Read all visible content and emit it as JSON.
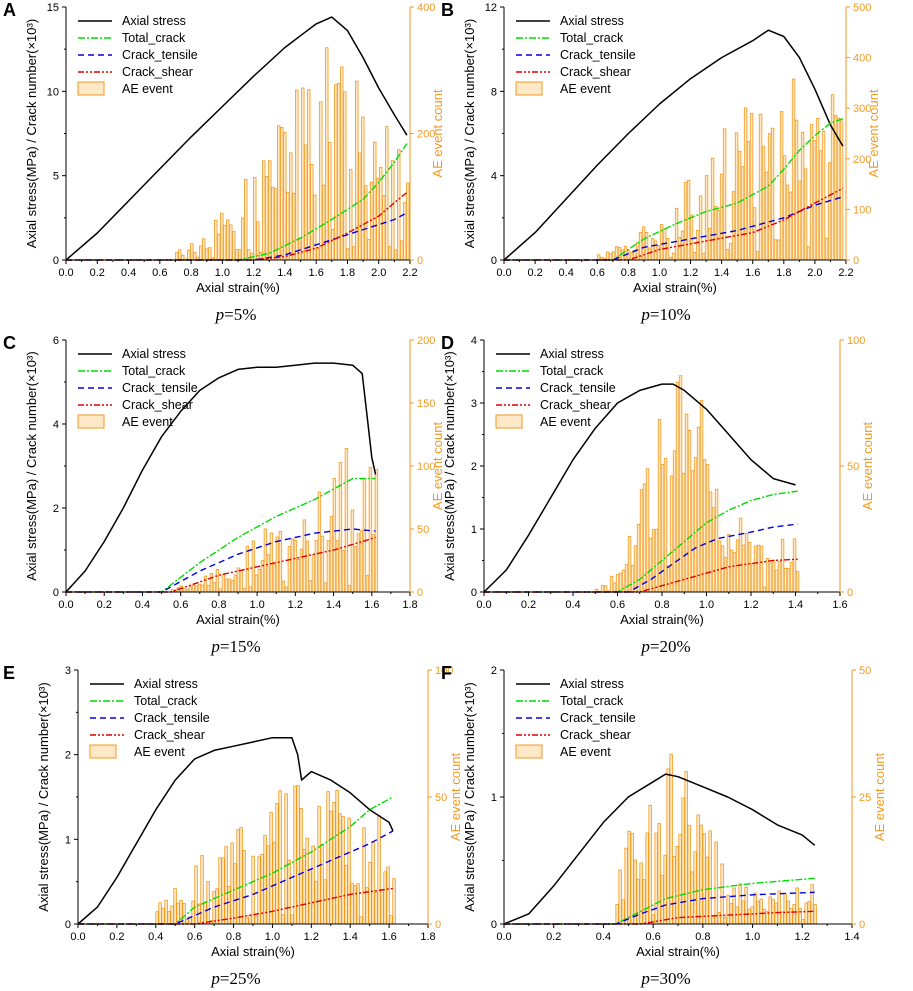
{
  "colors": {
    "stress": "#000000",
    "total": "#00dd00",
    "tensile": "#0000dd",
    "shear": "#dd0000",
    "ae": "#f39a1e",
    "ae_fill": "#fde8c8"
  },
  "common": {
    "xlabel": "Axial strain(%)",
    "ylabel_left": "Axial stress(MPa) / Crack number(×10³)",
    "ylabel_right": "AE event count",
    "legend": [
      "Axial stress",
      "Total_crack",
      "Crack_tensile",
      "Crack_shear",
      "AE event"
    ]
  },
  "chart_data": [
    {
      "panel": "A",
      "type": "line+bar",
      "caption_var": "p",
      "caption_value": "=5%",
      "xlim": [
        0,
        2.2
      ],
      "xticks": [
        0.0,
        0.2,
        0.4,
        0.6,
        0.8,
        1.0,
        1.2,
        1.4,
        1.6,
        1.8,
        2.0,
        2.2
      ],
      "ylim_left": [
        0,
        15
      ],
      "yticks_left": [
        0,
        5,
        10,
        15
      ],
      "ylim_right": [
        0,
        400
      ],
      "yticks_right": [
        0,
        200,
        400
      ],
      "series": [
        {
          "name": "Axial stress",
          "x": [
            0,
            0.2,
            0.4,
            0.6,
            0.8,
            1.0,
            1.2,
            1.4,
            1.5,
            1.6,
            1.7,
            1.8,
            1.9,
            2.0,
            2.1,
            2.18
          ],
          "y": [
            0,
            1.6,
            3.5,
            5.4,
            7.3,
            9.1,
            10.9,
            12.6,
            13.3,
            14.0,
            14.4,
            13.6,
            12.0,
            10.2,
            8.6,
            7.4
          ]
        },
        {
          "name": "Total_crack",
          "x": [
            0,
            1.1,
            1.3,
            1.5,
            1.7,
            1.9,
            2.0,
            2.1,
            2.18
          ],
          "y": [
            0,
            0,
            0.4,
            1.3,
            2.4,
            3.6,
            4.6,
            5.8,
            6.9
          ]
        },
        {
          "name": "Crack_tensile",
          "x": [
            0,
            1.2,
            1.4,
            1.6,
            1.8,
            2.0,
            2.1,
            2.18
          ],
          "y": [
            0,
            0,
            0.3,
            0.9,
            1.5,
            2.1,
            2.4,
            2.8
          ]
        },
        {
          "name": "Crack_shear",
          "x": [
            0,
            1.2,
            1.4,
            1.6,
            1.8,
            2.0,
            2.1,
            2.18
          ],
          "y": [
            0,
            0,
            0.2,
            0.7,
            1.6,
            2.6,
            3.4,
            4.0
          ]
        }
      ],
      "ae": {
        "start": 0.7,
        "end": 2.18,
        "peak_x": 1.72,
        "max": 270,
        "width": 0.4
      }
    },
    {
      "panel": "B",
      "type": "line+bar",
      "caption_var": "p",
      "caption_value": "=10%",
      "xlim": [
        0,
        2.2
      ],
      "xticks": [
        0.0,
        0.2,
        0.4,
        0.6,
        0.8,
        1.0,
        1.2,
        1.4,
        1.6,
        1.8,
        2.0,
        2.2
      ],
      "ylim_left": [
        0,
        12
      ],
      "yticks_left": [
        0,
        4,
        8,
        12
      ],
      "ylim_right": [
        0,
        500
      ],
      "yticks_right": [
        0,
        100,
        200,
        300,
        400,
        500
      ],
      "series": [
        {
          "name": "Axial stress",
          "x": [
            0,
            0.2,
            0.4,
            0.6,
            0.8,
            1.0,
            1.2,
            1.4,
            1.6,
            1.7,
            1.8,
            1.9,
            2.0,
            2.1,
            2.18
          ],
          "y": [
            0,
            1.3,
            2.9,
            4.5,
            6.0,
            7.4,
            8.6,
            9.6,
            10.4,
            10.9,
            10.6,
            9.6,
            8.1,
            6.4,
            5.4
          ]
        },
        {
          "name": "Total_crack",
          "x": [
            0,
            0.7,
            0.9,
            1.1,
            1.3,
            1.5,
            1.6,
            1.7,
            1.8,
            1.9,
            2.0,
            2.1,
            2.18
          ],
          "y": [
            0,
            0,
            1.0,
            1.7,
            2.3,
            2.7,
            3.1,
            3.5,
            4.3,
            5.2,
            5.9,
            6.5,
            6.7
          ]
        },
        {
          "name": "Crack_tensile",
          "x": [
            0,
            0.7,
            0.9,
            1.2,
            1.5,
            1.8,
            2.0,
            2.18
          ],
          "y": [
            0,
            0,
            0.6,
            1.0,
            1.4,
            2.0,
            2.6,
            3.0
          ]
        },
        {
          "name": "Crack_shear",
          "x": [
            0,
            0.8,
            1.0,
            1.3,
            1.6,
            1.8,
            2.0,
            2.18
          ],
          "y": [
            0,
            0,
            0.5,
            0.9,
            1.3,
            1.9,
            2.7,
            3.4
          ]
        }
      ],
      "ae": {
        "start": 0.6,
        "end": 2.18,
        "peak_x": 1.85,
        "max": 300,
        "width": 0.45
      }
    },
    {
      "panel": "C",
      "type": "line+bar",
      "caption_var": "p",
      "caption_value": "=15%",
      "xlim": [
        0,
        1.8
      ],
      "xticks": [
        0.0,
        0.2,
        0.4,
        0.6,
        0.8,
        1.0,
        1.2,
        1.4,
        1.6,
        1.8
      ],
      "ylim_left": [
        0,
        6
      ],
      "yticks_left": [
        0,
        2,
        4,
        6
      ],
      "ylim_right": [
        0,
        200
      ],
      "yticks_right": [
        0,
        50,
        100,
        150,
        200
      ],
      "series": [
        {
          "name": "Axial stress",
          "x": [
            0,
            0.1,
            0.2,
            0.3,
            0.4,
            0.5,
            0.6,
            0.7,
            0.8,
            0.9,
            1.0,
            1.1,
            1.2,
            1.3,
            1.4,
            1.5,
            1.55,
            1.58,
            1.6,
            1.62
          ],
          "y": [
            0,
            0.5,
            1.2,
            2.0,
            2.9,
            3.7,
            4.3,
            4.8,
            5.1,
            5.3,
            5.35,
            5.35,
            5.4,
            5.45,
            5.45,
            5.4,
            5.2,
            4.0,
            3.2,
            2.8
          ]
        },
        {
          "name": "Total_crack",
          "x": [
            0,
            0.5,
            0.7,
            0.9,
            1.1,
            1.3,
            1.5,
            1.6,
            1.62
          ],
          "y": [
            0,
            0,
            0.7,
            1.3,
            1.8,
            2.2,
            2.7,
            2.7,
            2.7
          ]
        },
        {
          "name": "Crack_tensile",
          "x": [
            0,
            0.5,
            0.7,
            0.9,
            1.1,
            1.3,
            1.5,
            1.62
          ],
          "y": [
            0,
            0,
            0.5,
            0.9,
            1.2,
            1.4,
            1.5,
            1.45
          ]
        },
        {
          "name": "Crack_shear",
          "x": [
            0,
            0.55,
            0.8,
            1.0,
            1.2,
            1.4,
            1.55,
            1.62
          ],
          "y": [
            0,
            0,
            0.4,
            0.6,
            0.8,
            1.0,
            1.2,
            1.3
          ]
        }
      ],
      "ae": {
        "start": 0.55,
        "end": 1.62,
        "peak_x": 1.55,
        "max": 90,
        "width": 0.5
      }
    },
    {
      "panel": "D",
      "type": "line+bar",
      "caption_var": "p",
      "caption_value": "=20%",
      "xlim": [
        0,
        1.6
      ],
      "xticks": [
        0.0,
        0.2,
        0.4,
        0.6,
        0.8,
        1.0,
        1.2,
        1.4,
        1.6
      ],
      "ylim_left": [
        0,
        4
      ],
      "yticks_left": [
        0,
        1,
        2,
        3,
        4
      ],
      "ylim_right": [
        0,
        100
      ],
      "yticks_right": [
        0,
        50,
        100
      ],
      "series": [
        {
          "name": "Axial stress",
          "x": [
            0,
            0.1,
            0.2,
            0.3,
            0.4,
            0.5,
            0.6,
            0.7,
            0.8,
            0.85,
            0.9,
            1.0,
            1.1,
            1.2,
            1.3,
            1.4
          ],
          "y": [
            0,
            0.35,
            0.9,
            1.5,
            2.1,
            2.6,
            3.0,
            3.2,
            3.3,
            3.3,
            3.2,
            2.9,
            2.5,
            2.1,
            1.8,
            1.7
          ]
        },
        {
          "name": "Total_crack",
          "x": [
            0,
            0.6,
            0.7,
            0.8,
            0.9,
            1.0,
            1.1,
            1.2,
            1.3,
            1.41
          ],
          "y": [
            0,
            0,
            0.2,
            0.5,
            0.8,
            1.1,
            1.3,
            1.45,
            1.55,
            1.6
          ]
        },
        {
          "name": "Crack_tensile",
          "x": [
            0,
            0.65,
            0.75,
            0.85,
            0.95,
            1.05,
            1.2,
            1.3,
            1.41
          ],
          "y": [
            0,
            0,
            0.2,
            0.45,
            0.7,
            0.85,
            0.95,
            1.03,
            1.08
          ]
        },
        {
          "name": "Crack_shear",
          "x": [
            0,
            0.7,
            0.8,
            0.9,
            1.0,
            1.1,
            1.2,
            1.3,
            1.41
          ],
          "y": [
            0,
            0,
            0.1,
            0.2,
            0.3,
            0.4,
            0.45,
            0.5,
            0.52
          ]
        }
      ],
      "ae": {
        "start": 0.5,
        "end": 1.41,
        "peak_x": 0.88,
        "max": 75,
        "width": 0.22
      }
    },
    {
      "panel": "E",
      "type": "line+bar",
      "caption_var": "p",
      "caption_value": "=25%",
      "xlim": [
        0,
        1.8
      ],
      "xticks": [
        0.0,
        0.2,
        0.4,
        0.6,
        0.8,
        1.0,
        1.2,
        1.4,
        1.6,
        1.8
      ],
      "ylim_left": [
        0,
        3
      ],
      "yticks_left": [
        0,
        1,
        2,
        3
      ],
      "ylim_right": [
        0,
        100
      ],
      "yticks_right": [
        0,
        50,
        100
      ],
      "series": [
        {
          "name": "Axial stress",
          "x": [
            0,
            0.1,
            0.2,
            0.3,
            0.4,
            0.5,
            0.6,
            0.7,
            0.8,
            0.9,
            1.0,
            1.1,
            1.13,
            1.15,
            1.2,
            1.3,
            1.4,
            1.5,
            1.6,
            1.62
          ],
          "y": [
            0,
            0.2,
            0.55,
            0.95,
            1.35,
            1.7,
            1.95,
            2.05,
            2.1,
            2.15,
            2.2,
            2.2,
            2.0,
            1.7,
            1.8,
            1.7,
            1.55,
            1.35,
            1.2,
            1.1
          ]
        },
        {
          "name": "Total_crack",
          "x": [
            0,
            0.5,
            0.6,
            0.8,
            1.0,
            1.2,
            1.4,
            1.5,
            1.62
          ],
          "y": [
            0,
            0,
            0.2,
            0.4,
            0.6,
            0.85,
            1.15,
            1.35,
            1.5
          ]
        },
        {
          "name": "Crack_tensile",
          "x": [
            0,
            0.5,
            0.7,
            0.9,
            1.1,
            1.3,
            1.5,
            1.62
          ],
          "y": [
            0,
            0,
            0.2,
            0.35,
            0.55,
            0.75,
            0.95,
            1.1
          ]
        },
        {
          "name": "Crack_shear",
          "x": [
            0,
            0.6,
            0.8,
            1.0,
            1.2,
            1.4,
            1.62
          ],
          "y": [
            0,
            0,
            0.07,
            0.15,
            0.25,
            0.35,
            0.42
          ]
        }
      ],
      "ae": {
        "start": 0.4,
        "end": 1.62,
        "peak_x": 1.13,
        "max": 45,
        "width": 0.5
      }
    },
    {
      "panel": "F",
      "type": "line+bar",
      "caption_var": "p",
      "caption_value": "=30%",
      "xlim": [
        0,
        1.4
      ],
      "xticks": [
        0.0,
        0.2,
        0.4,
        0.6,
        0.8,
        1.0,
        1.2,
        1.4
      ],
      "ylim_left": [
        0,
        2
      ],
      "yticks_left": [
        0,
        1,
        2
      ],
      "ylim_right": [
        0,
        50
      ],
      "yticks_right": [
        0,
        25,
        50
      ],
      "series": [
        {
          "name": "Axial stress",
          "x": [
            0,
            0.05,
            0.1,
            0.2,
            0.3,
            0.4,
            0.5,
            0.6,
            0.65,
            0.7,
            0.8,
            0.9,
            1.0,
            1.1,
            1.2,
            1.25
          ],
          "y": [
            0,
            0.04,
            0.08,
            0.3,
            0.55,
            0.8,
            1.0,
            1.12,
            1.18,
            1.16,
            1.08,
            1.0,
            0.9,
            0.78,
            0.7,
            0.62
          ]
        },
        {
          "name": "Total_crack",
          "x": [
            0,
            0.45,
            0.55,
            0.65,
            0.8,
            1.0,
            1.25
          ],
          "y": [
            0,
            0,
            0.1,
            0.2,
            0.27,
            0.32,
            0.36
          ]
        },
        {
          "name": "Crack_tensile",
          "x": [
            0,
            0.45,
            0.55,
            0.65,
            0.8,
            1.0,
            1.25
          ],
          "y": [
            0,
            0,
            0.08,
            0.15,
            0.2,
            0.23,
            0.25
          ]
        },
        {
          "name": "Crack_shear",
          "x": [
            0,
            0.55,
            0.7,
            0.9,
            1.1,
            1.25
          ],
          "y": [
            0,
            0,
            0.05,
            0.07,
            0.09,
            0.1
          ]
        }
      ],
      "ae": {
        "start": 0.45,
        "end": 1.25,
        "peak_x": 0.65,
        "max": 30,
        "width": 0.25
      }
    }
  ]
}
